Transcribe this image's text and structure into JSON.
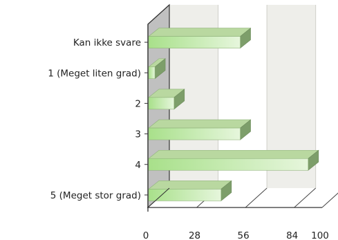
{
  "chart_data": {
    "type": "bar",
    "orientation": "horizontal",
    "style": "3d",
    "categories": [
      "Kan ikke svare",
      "1 (Meget liten grad)",
      "2",
      "3",
      "4",
      "5 (Meget stor grad)"
    ],
    "values": [
      53,
      4,
      15,
      53,
      92,
      42
    ],
    "xticks": [
      "0",
      "28",
      "56",
      "84",
      "100"
    ],
    "xlim": [
      0,
      100
    ],
    "title": "",
    "xlabel": "",
    "ylabel": "",
    "grid": true,
    "legend": "none",
    "colors": {
      "bar_front_start": "#a8e08a",
      "bar_front_end": "#e6f6dc",
      "bar_top": "#b9d8a0",
      "bar_side": "#7d9e6a",
      "wall_back": "#eeeeea",
      "wall_left": "#c0c0c0",
      "axis": "#333333"
    }
  }
}
